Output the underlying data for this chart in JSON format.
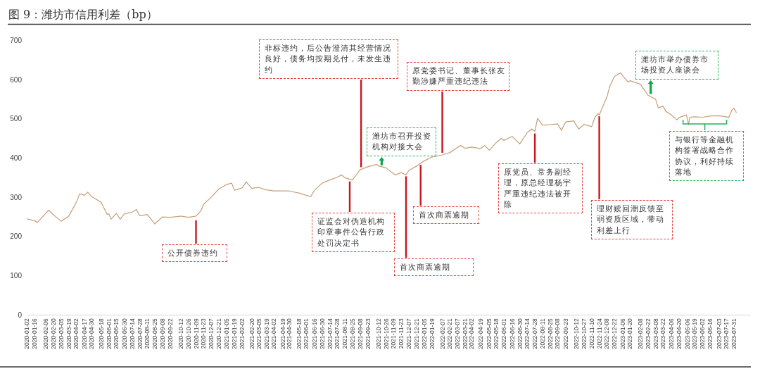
{
  "chart_data": {
    "type": "line",
    "title": "图 9：潍坊市信用利差（bp）",
    "color": "#c8a07c",
    "x": [
      "2020-01-02",
      "2020-01-16",
      "2020-01-21",
      "2020-02-06",
      "2020-02-11",
      "2020-02-20",
      "2020-03-05",
      "2020-03-19",
      "2020-04-02",
      "2020-04-08",
      "2020-04-17",
      "2020-04-23",
      "2020-04-30",
      "2020-05-18",
      "2020-05-29",
      "2020-06-01",
      "2020-06-05",
      "2020-06-15",
      "2020-06-22",
      "2020-06-30",
      "2020-07-14",
      "2020-07-22",
      "2020-07-28",
      "2020-08-11",
      "2020-08-25",
      "2020-09-08",
      "2020-09-22",
      "2020-10-12",
      "2020-10-26",
      "2020-11-09",
      "2020-11-18",
      "2020-11-23",
      "2020-12-07",
      "2020-12-21",
      "2021-01-05",
      "2021-01-14",
      "2021-01-19",
      "2021-02-02",
      "2021-02-10",
      "2021-02-20",
      "2021-03-05",
      "2021-03-19",
      "2021-04-02",
      "2021-04-19",
      "2021-04-30",
      "2021-05-18",
      "2021-06-01",
      "2021-06-09",
      "2021-06-16",
      "2021-06-30",
      "2021-07-14",
      "2021-07-28",
      "2021-08-05",
      "2021-08-11",
      "2021-08-25",
      "2021-09-08",
      "2021-09-23",
      "2021-10-09",
      "2021-10-12",
      "2021-10-26",
      "2021-11-09",
      "2021-11-12",
      "2021-11-23",
      "2021-12-02",
      "2021-12-07",
      "2021-12-21",
      "2022-01-05",
      "2022-01-19",
      "2022-02-07",
      "2022-02-21",
      "2022-03-07",
      "2022-03-13",
      "2022-03-21",
      "2022-04-02",
      "2022-04-19",
      "2022-04-26",
      "2022-05-05",
      "2022-05-18",
      "2022-05-27",
      "2022-06-01",
      "2022-06-16",
      "2022-06-30",
      "2022-07-14",
      "2022-07-22",
      "2022-07-28",
      "2022-08-02",
      "2022-08-11",
      "2022-08-25",
      "2022-09-08",
      "2022-09-15",
      "2022-09-23",
      "2022-10-08",
      "2022-10-12",
      "2022-10-17",
      "2022-10-27",
      "2022-11-10",
      "2022-11-16",
      "2022-11-22",
      "2022-11-24",
      "2022-12-08",
      "2022-12-13",
      "2022-12-22",
      "2022-12-30",
      "2023-01-03",
      "2023-01-06",
      "2023-01-16",
      "2023-01-20",
      "2023-02-08",
      "2023-02-22",
      "2023-03-08",
      "2023-03-13",
      "2023-03-22",
      "2023-03-27",
      "2023-04-06",
      "2023-04-17",
      "2023-04-20",
      "2023-05-04",
      "2023-05-08",
      "2023-05-10",
      "2023-05-19",
      "2023-06-02",
      "2023-06-16",
      "2023-07-03",
      "2023-07-17",
      "2023-07-21",
      "2023-07-27",
      "2023-07-31",
      "2023-08-04"
    ],
    "values": [
      245,
      240,
      236,
      260,
      267,
      255,
      239,
      252,
      287,
      309,
      305,
      313,
      302,
      287,
      256,
      258,
      244,
      259,
      244,
      258,
      262,
      269,
      253,
      256,
      232,
      250,
      249,
      252,
      249,
      252,
      265,
      282,
      300,
      321,
      333,
      336,
      318,
      324,
      339,
      323,
      325,
      319,
      316,
      316,
      316,
      311,
      305,
      302,
      318,
      336,
      344,
      351,
      357,
      350,
      344,
      370,
      378,
      384,
      380,
      375,
      360,
      357,
      363,
      357,
      368,
      379,
      393,
      403,
      408,
      414,
      427,
      432,
      425,
      428,
      424,
      432,
      420,
      440,
      450,
      445,
      455,
      436,
      465,
      474,
      468,
      501,
      484,
      485,
      487,
      471,
      492,
      495,
      485,
      474,
      486,
      480,
      504,
      513,
      510,
      555,
      581,
      608,
      615,
      617,
      610,
      594,
      597,
      588,
      560,
      550,
      528,
      532,
      519,
      510,
      497,
      503,
      510,
      485,
      504,
      505,
      504,
      507,
      508,
      505,
      503,
      522,
      527,
      516
    ],
    "xlim": [
      "2020-01-02",
      "2023-08-31"
    ],
    "ylim": [
      0,
      700
    ],
    "xticks": [
      "2020-01-02",
      "2020-01-16",
      "2020-02-06",
      "2020-02-20",
      "2020-03-05",
      "2020-03-19",
      "2020-04-02",
      "2020-04-17",
      "2020-04-30",
      "2020-05-18",
      "2020-06-01",
      "2020-06-15",
      "2020-06-30",
      "2020-07-14",
      "2020-07-28",
      "2020-08-11",
      "2020-08-25",
      "2020-09-08",
      "2020-09-22",
      "2020-10-12",
      "2020-10-26",
      "2020-11-09",
      "2020-11-23",
      "2020-12-07",
      "2020-12-21",
      "2021-01-05",
      "2021-01-19",
      "2021-02-02",
      "2021-02-20",
      "2021-03-05",
      "2021-03-19",
      "2021-04-02",
      "2021-04-19",
      "2021-04-30",
      "2021-05-18",
      "2021-06-01",
      "2021-06-16",
      "2021-06-30",
      "2021-07-14",
      "2021-07-28",
      "2021-08-11",
      "2021-08-25",
      "2021-09-08",
      "2021-09-23",
      "2021-10-12",
      "2021-10-26",
      "2021-11-09",
      "2021-11-23",
      "2021-12-07",
      "2021-12-21",
      "2022-01-05",
      "2022-01-19",
      "2022-02-07",
      "2022-02-21",
      "2022-03-07",
      "2022-03-21",
      "2022-04-02",
      "2022-04-19",
      "2022-05-05",
      "2022-05-18",
      "2022-06-01",
      "2022-06-16",
      "2022-06-30",
      "2022-07-14",
      "2022-07-28",
      "2022-08-11",
      "2022-08-25",
      "2022-09-08",
      "2022-09-23",
      "2022-10-12",
      "2022-10-27",
      "2022-11-10",
      "2022-11-24",
      "2022-12-08",
      "2022-12-22",
      "2023-01-06",
      "2023-01-20",
      "2023-02-08",
      "2023-02-22",
      "2023-03-08",
      "2023-03-22",
      "2023-04-06",
      "2023-04-20",
      "2023-05-06",
      "2023-05-19",
      "2023-06-02",
      "2023-06-16",
      "2023-07-03",
      "2023-07-17",
      "2023-07-31"
    ],
    "yticks": [
      0,
      100,
      200,
      300,
      400,
      500,
      600,
      700
    ],
    "annotations": [
      {
        "text": "公开债券违约",
        "x": "2020-11-09",
        "y": 252
      },
      {
        "text": "非标违约，后公告澄清其经营情况良好，债务均按期兑付，未发生违约",
        "x": "2021-09-10",
        "y": 373
      },
      {
        "text": "潍坊市召开投资机构对接大会",
        "x": "2021-10-18",
        "y": 376
      },
      {
        "text": "原党委书记、董事长张友勤涉嫌严重违纪违法",
        "x": "2022-02-07",
        "y": 408
      },
      {
        "text": "证监会对伪造机构印章事件公告行政处罚决定书",
        "x": "2021-08-20",
        "y": 344
      },
      {
        "text": "首次商票逾期",
        "x": "2021-12-02",
        "y": 357
      },
      {
        "text": "首次商票逾期",
        "x": "2021-12-29",
        "y": 386
      },
      {
        "text": "原党员、常务副经理，原总经理杨宇严重违纪违法被开除",
        "x": "2022-07-28",
        "y": 468
      },
      {
        "text": "理财赎回潮反馈至弱资质区域，带动利差上行",
        "x": "2022-11-24",
        "y": 510
      },
      {
        "text": "潍坊市举办债券市场投资人座谈会",
        "x": "2023-02-27",
        "y": 558
      },
      {
        "text": "与银行等金融机构签署战略合作协议，利好持续落地",
        "x": "2023-06-07",
        "y": 505
      }
    ]
  }
}
